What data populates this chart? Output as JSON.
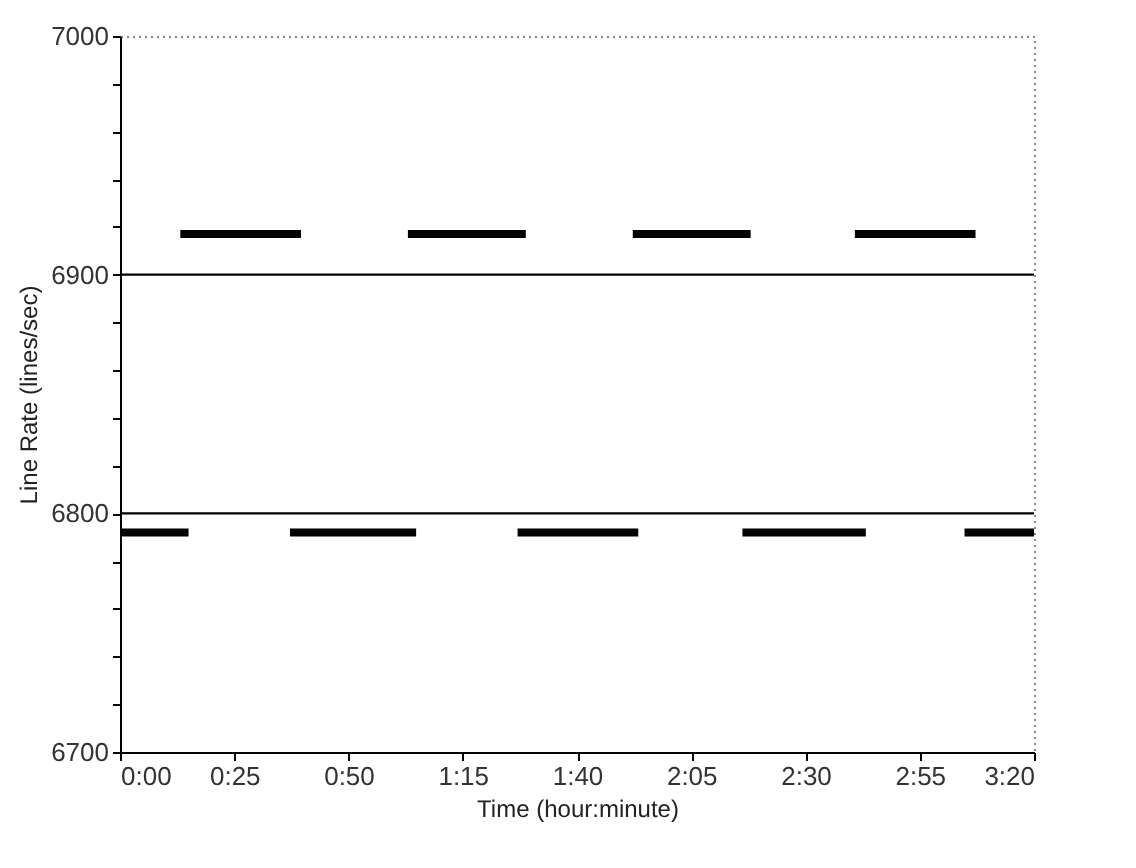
{
  "chart_data": {
    "type": "line",
    "xlabel": "Time (hour:minute)",
    "ylabel": "Line Rate (lines/sec)",
    "xlim": [
      0,
      3.3333
    ],
    "ylim": [
      6700,
      7000
    ],
    "xticks": [
      {
        "value": 0,
        "label": "0:00"
      },
      {
        "value": 0.4167,
        "label": "0:25"
      },
      {
        "value": 0.8333,
        "label": "0:50"
      },
      {
        "value": 1.25,
        "label": "1:15"
      },
      {
        "value": 1.6667,
        "label": "1:40"
      },
      {
        "value": 2.0833,
        "label": "2:05"
      },
      {
        "value": 2.5,
        "label": "2:30"
      },
      {
        "value": 2.9167,
        "label": "2:55"
      },
      {
        "value": 3.3333,
        "label": "3:20"
      }
    ],
    "yticks": [
      6700,
      {
        "value": 6720,
        "label": null
      },
      {
        "value": 6740,
        "label": null
      },
      {
        "value": 6760,
        "label": null
      },
      {
        "value": 6780,
        "label": null
      },
      6800,
      {
        "value": 6820,
        "label": null
      },
      {
        "value": 6840,
        "label": null
      },
      {
        "value": 6860,
        "label": null
      },
      {
        "value": 6880,
        "label": null
      },
      6900,
      {
        "value": 6920,
        "label": null
      },
      {
        "value": 6940,
        "label": null
      },
      {
        "value": 6960,
        "label": null
      },
      {
        "value": 6980,
        "label": null
      },
      7000
    ],
    "grid": false,
    "legend": false,
    "marker": "none",
    "line_style": "solid",
    "series": [
      {
        "color": "#000000",
        "x": [
          0,
          0.25
        ],
        "values": [
          6792,
          6792
        ]
      },
      {
        "color": "#000000",
        "x": [
          0.22,
          0.66
        ],
        "values": [
          6917,
          6917
        ]
      },
      {
        "color": "#000000",
        "x": [
          0.62,
          1.08
        ],
        "values": [
          6792,
          6792
        ]
      },
      {
        "color": "#000000",
        "x": [
          1.05,
          1.48
        ],
        "values": [
          6917,
          6917
        ]
      },
      {
        "color": "#000000",
        "x": [
          1.45,
          1.89
        ],
        "values": [
          6792,
          6792
        ]
      },
      {
        "color": "#000000",
        "x": [
          1.87,
          2.3
        ],
        "values": [
          6917,
          6917
        ]
      },
      {
        "color": "#000000",
        "x": [
          2.27,
          2.72
        ],
        "values": [
          6792,
          6792
        ]
      },
      {
        "color": "#000000",
        "x": [
          2.68,
          3.12
        ],
        "values": [
          6917,
          6917
        ]
      },
      {
        "color": "#000000",
        "x": [
          3.08,
          3.3333
        ],
        "values": [
          6792,
          6792
        ]
      }
    ],
    "ref_lines": [
      {
        "axis": "y",
        "value": 6900,
        "color": "#000000"
      },
      {
        "axis": "y",
        "value": 6800,
        "color": "#000000"
      }
    ]
  }
}
